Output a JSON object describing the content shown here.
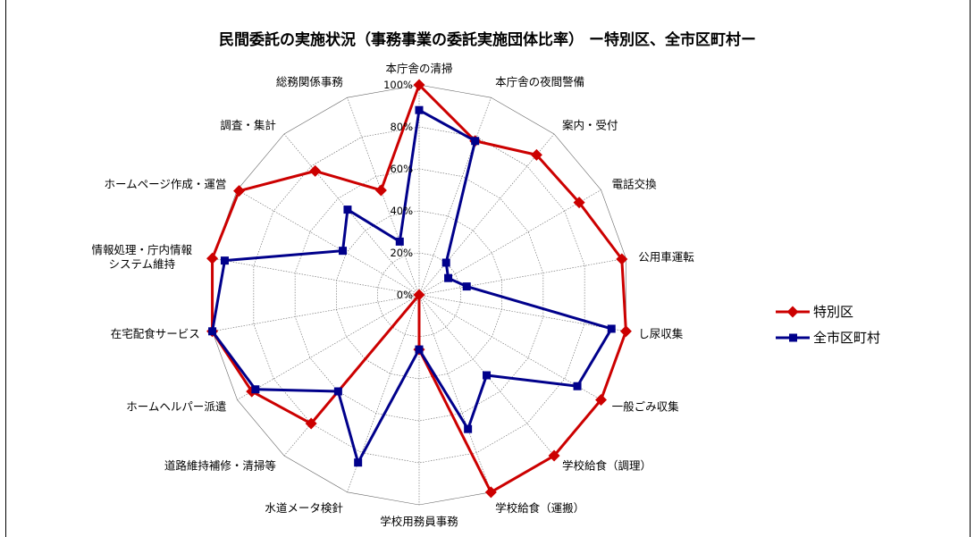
{
  "chart_data": {
    "type": "radar",
    "title": "民間委託の実施状況（事務事業の委託実施団体比率） ー特別区、全市区町村ー",
    "categories": [
      "本庁舎の清掃",
      "本庁舎の夜間警備",
      "案内・受付",
      "電話交換",
      "公用車運転",
      "し尿収集",
      "一般ごみ収集",
      "学校給食（調理）",
      "学校給食（運搬）",
      "学校用務員事務",
      "水道メータ検針",
      "道路維持補修・清掃等",
      "ホームヘルパー派遣",
      "在宅配食サービス",
      "情報処理・庁内情報\nシステム維持",
      "ホームページ作成・運営",
      "調査・集計",
      "総務関係事務"
    ],
    "series": [
      {
        "name": "特別区",
        "color": "#cc0000",
        "values": [
          100,
          78,
          87,
          88,
          98,
          100,
          100,
          100,
          100,
          26,
          0,
          80,
          92,
          100,
          100,
          99,
          77,
          53
        ]
      },
      {
        "name": "全市区町村",
        "color": "#00008b",
        "values": [
          88,
          78,
          20,
          16,
          23,
          93,
          87,
          50,
          68,
          26,
          85,
          60,
          90,
          100,
          94,
          42,
          53,
          27
        ]
      }
    ],
    "rlim": [
      0,
      100
    ],
    "ticks": [
      "0%",
      "20%",
      "40%",
      "60%",
      "80%",
      "100%"
    ],
    "legend": "right"
  }
}
